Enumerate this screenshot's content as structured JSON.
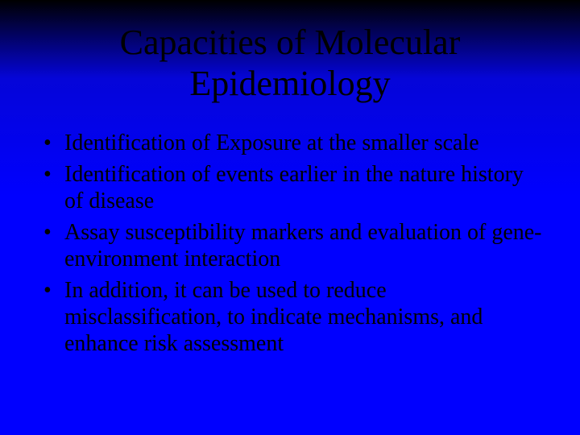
{
  "slide": {
    "background": {
      "gradient_stops": [
        "#000000",
        "#0505d8",
        "#0000ff",
        "#0000ff"
      ],
      "gradient_positions_pct": [
        0,
        18,
        45,
        100
      ]
    },
    "text_color": "#000000",
    "font_family": "Times New Roman",
    "title": {
      "line1": "Capacities of Molecular",
      "line2": "Epidemiology",
      "fontsize": 44,
      "align": "center"
    },
    "bullets": {
      "fontsize": 28,
      "marker": "•",
      "items": [
        "Identification of Exposure at the smaller scale",
        "Identification of events earlier in the nature history of disease",
        "Assay susceptibility markers and evaluation of gene-environment interaction",
        "In addition, it can be used to reduce misclassification, to indicate mechanisms, and enhance risk assessment"
      ]
    }
  }
}
